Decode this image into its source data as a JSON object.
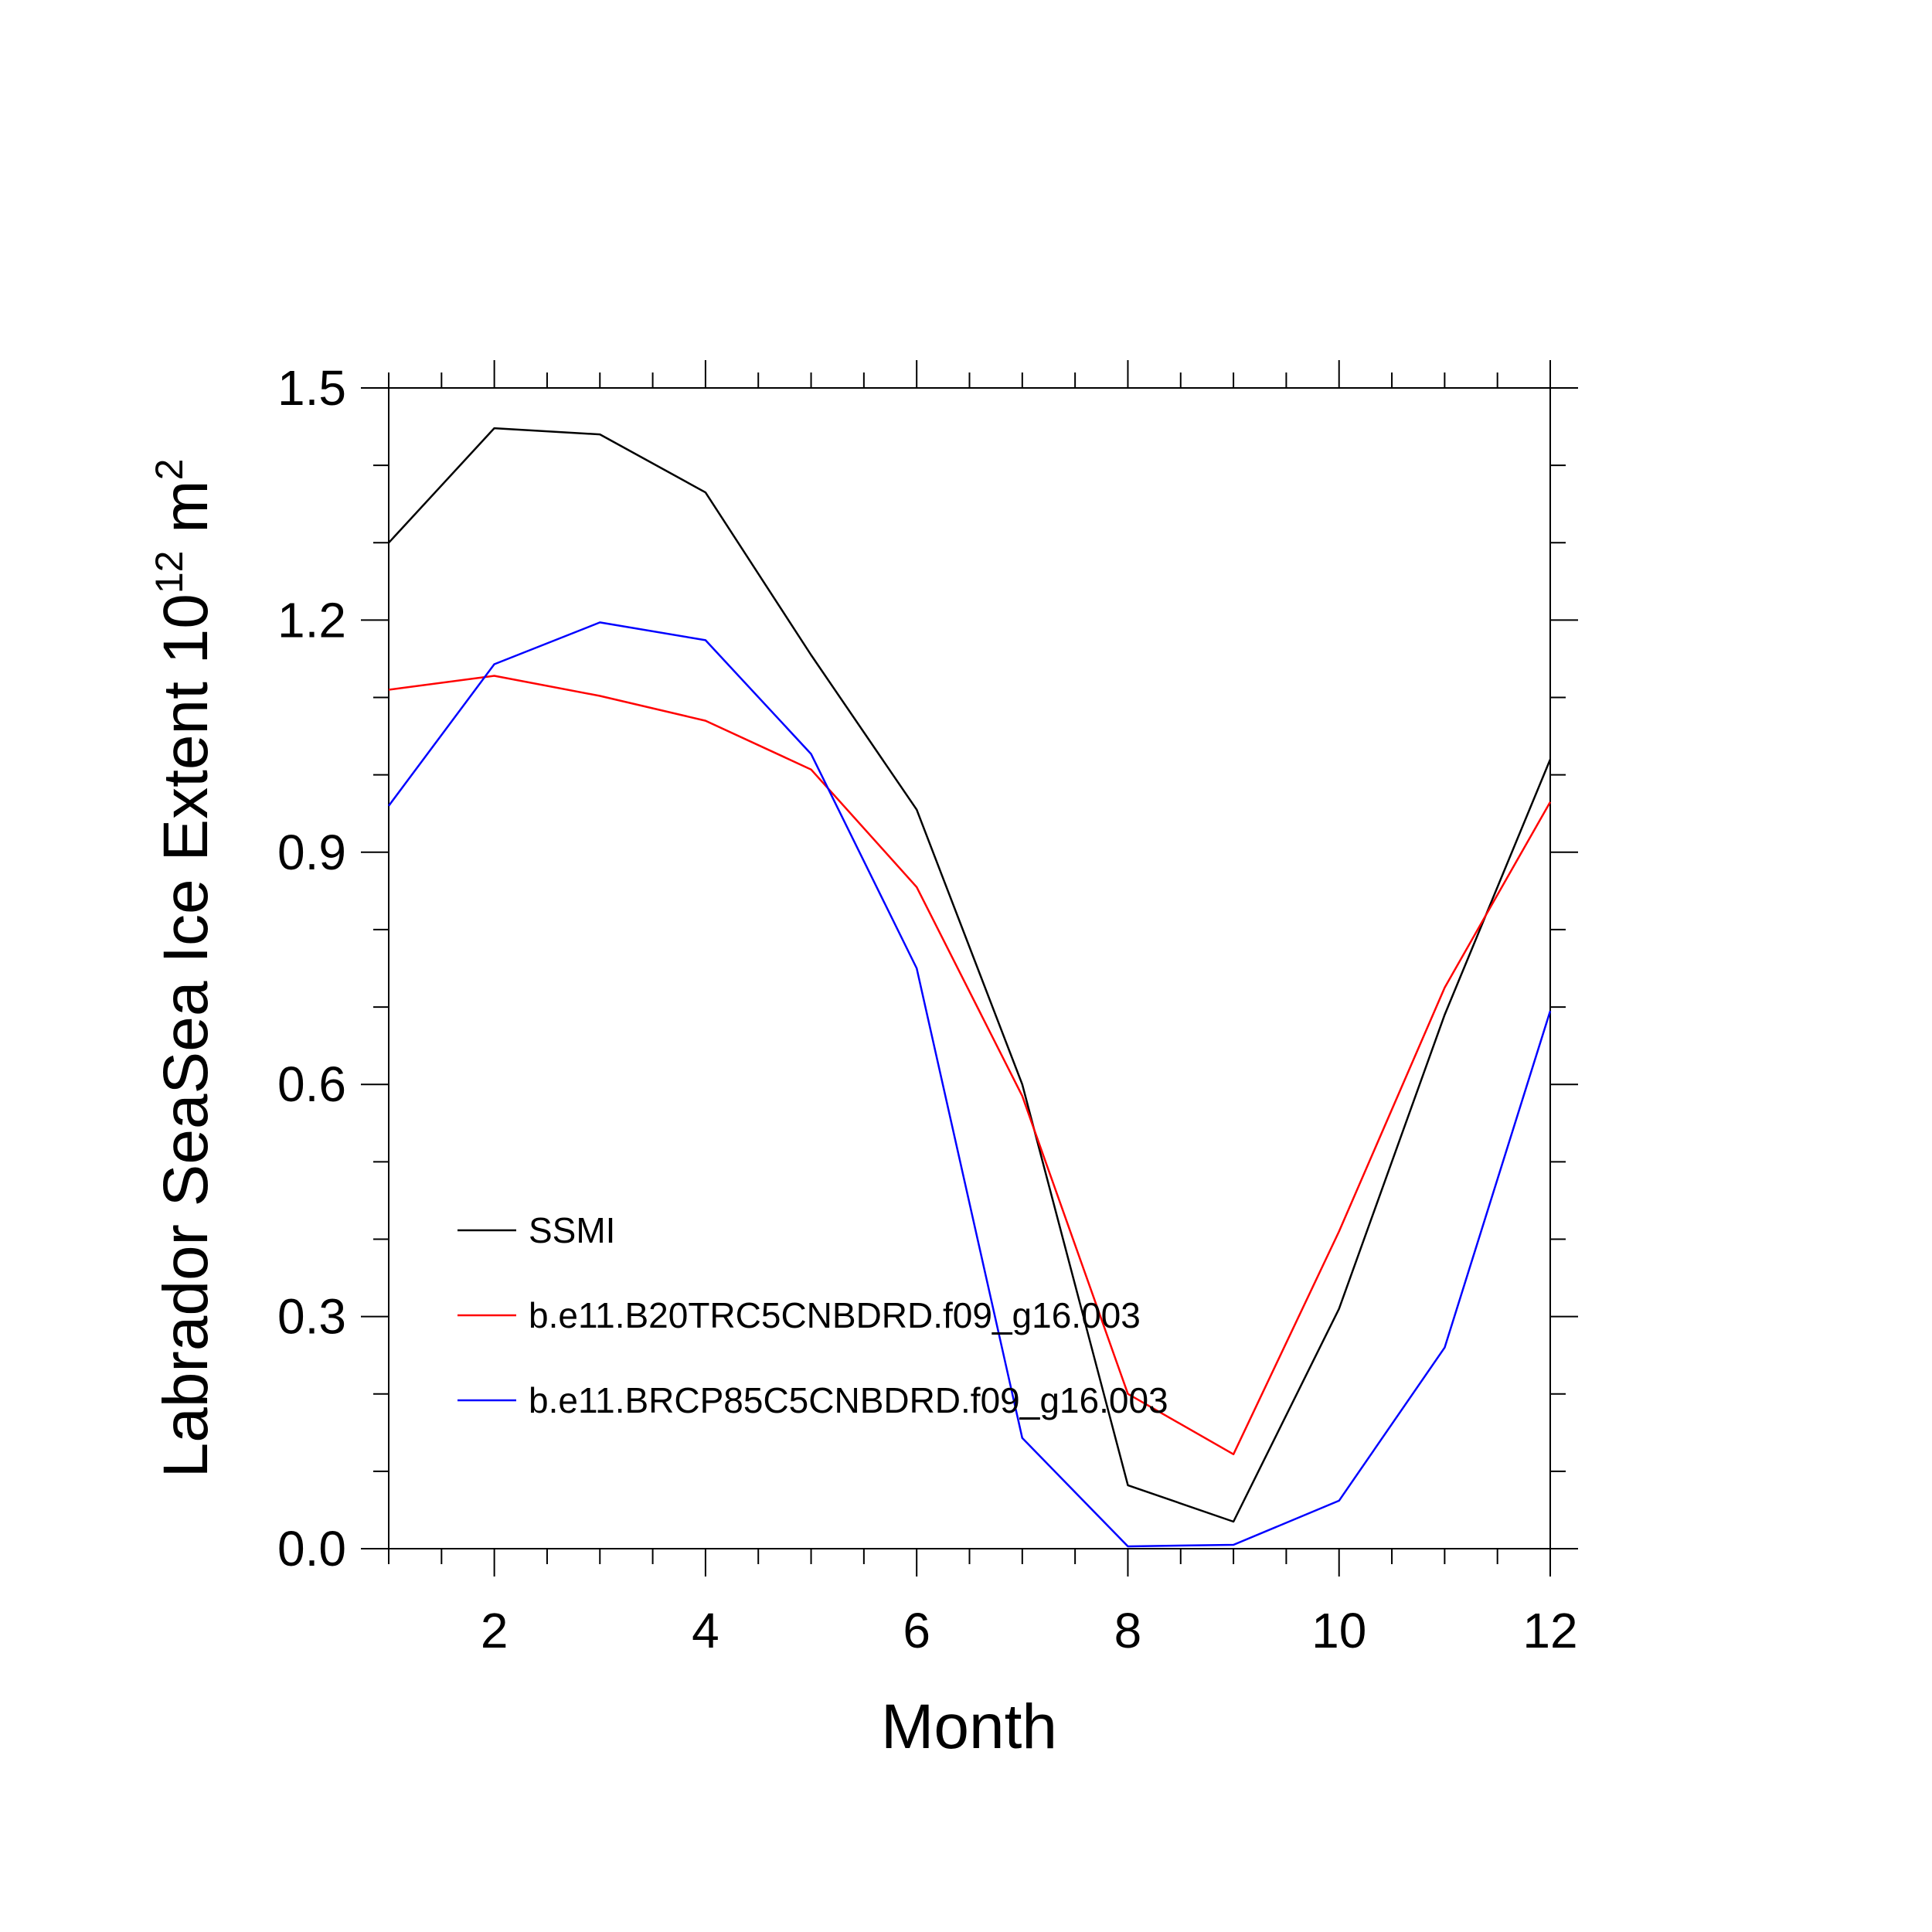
{
  "chart_data": {
    "type": "line",
    "xlabel": "Month",
    "ylabel_main": "Labrador SeaSea Ice Extent 10",
    "ylabel_sup": "12",
    "ylabel_unit": " m",
    "ylabel_unit_sup": "2",
    "xlim": [
      1,
      12
    ],
    "ylim": [
      0.0,
      1.5
    ],
    "x_ticks": [
      2,
      4,
      6,
      8,
      10,
      12
    ],
    "x_tick_labels": [
      "2",
      "4",
      "6",
      "8",
      "10",
      "12"
    ],
    "y_ticks": [
      0.0,
      0.3,
      0.6,
      0.9,
      1.2,
      1.5
    ],
    "y_tick_labels": [
      "0.0",
      "0.3",
      "0.6",
      "0.9",
      "1.2",
      "1.5"
    ],
    "x": [
      1,
      2,
      3,
      4,
      5,
      6,
      7,
      8,
      9,
      10,
      11,
      12
    ],
    "grid": false,
    "legend_position": "bottom-left",
    "series": [
      {
        "name": "SSMI",
        "color": "#000000",
        "values": [
          1.3,
          1.448,
          1.44,
          1.365,
          1.155,
          0.955,
          0.6,
          0.082,
          0.035,
          0.31,
          0.69,
          1.02
        ]
      },
      {
        "name": "b.e11.B20TRC5CNBDRD.f09_g16.003",
        "color": "#ff0000",
        "values": [
          1.11,
          1.128,
          1.102,
          1.07,
          1.007,
          0.855,
          0.585,
          0.2,
          0.122,
          0.41,
          0.725,
          0.965
        ]
      },
      {
        "name": "b.e11.BRCP85C5CNBDRD.f09_g16.003",
        "color": "#0000ff",
        "values": [
          0.96,
          1.143,
          1.197,
          1.174,
          1.027,
          0.75,
          0.143,
          0.003,
          0.005,
          0.062,
          0.26,
          0.695
        ]
      }
    ]
  }
}
